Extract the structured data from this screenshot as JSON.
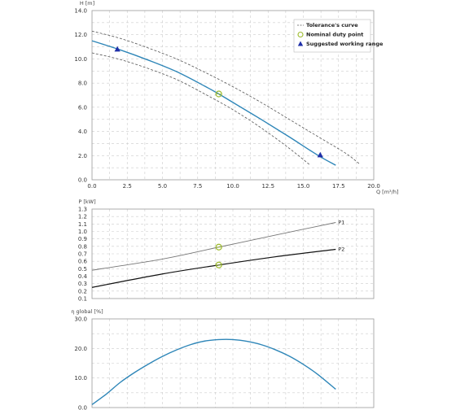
{
  "colors": {
    "curve": "#2e86b8",
    "tolerance": "#555555",
    "duty_marker": "#9dbb2c",
    "range_marker": "#1f2fa8",
    "p1": "#777777",
    "p2": "#111111",
    "grid": "#cccccc",
    "frame": "#999999"
  },
  "chart_data": [
    {
      "id": "head",
      "type": "line",
      "xlabel": "Q [m³/h]",
      "ylabel": "H [m]",
      "xlim": [
        0,
        20
      ],
      "ylim": [
        0,
        14
      ],
      "xticks": [
        "0.0",
        "2.5",
        "5.0",
        "7.5",
        "10.0",
        "12.5",
        "15.0",
        "17.5",
        "20.0"
      ],
      "yticks": [
        "0.0",
        "2.0",
        "4.0",
        "6.0",
        "8.0",
        "10.0",
        "12.0",
        "14.0"
      ],
      "grid": true,
      "legend_position": "top-right",
      "legend": [
        {
          "label": "Tolerance's curve",
          "marker": "dashed-line"
        },
        {
          "label": "Nominal duty point",
          "marker": "circle"
        },
        {
          "label": "Suggested working range",
          "marker": "triangle"
        }
      ],
      "series": [
        {
          "x": [
            0,
            2,
            4,
            6,
            8,
            9,
            10,
            12,
            14,
            16,
            17.3
          ],
          "y": [
            11.5,
            10.75,
            9.9,
            8.95,
            7.75,
            7.1,
            6.4,
            5.0,
            3.55,
            2.05,
            1.2
          ]
        },
        {
          "x": [
            0,
            2,
            4,
            6,
            8,
            10,
            12,
            14,
            16,
            18,
            19
          ],
          "y": [
            12.3,
            11.7,
            10.9,
            10.0,
            8.9,
            7.7,
            6.4,
            5.0,
            3.6,
            2.2,
            1.3
          ]
        },
        {
          "x": [
            0,
            2,
            4,
            6,
            8,
            10,
            12,
            14,
            15.5
          ],
          "y": [
            10.5,
            9.95,
            9.2,
            8.3,
            7.1,
            5.8,
            4.3,
            2.6,
            1.2
          ]
        }
      ],
      "duty_point": {
        "x": 9.0,
        "y": 7.1
      },
      "working_range": [
        {
          "x": 1.8,
          "y": 10.8
        },
        {
          "x": 16.2,
          "y": 2.05
        }
      ]
    },
    {
      "id": "power",
      "type": "line",
      "ylabel": "P [kW]",
      "xlim": [
        0,
        20
      ],
      "ylim": [
        0.1,
        1.3
      ],
      "yticks": [
        "1.3",
        "1.2",
        "1.1",
        "1.0",
        "0.9",
        "0.8",
        "0.7",
        "0.6",
        "0.5",
        "0.4",
        "0.3",
        "0.2",
        "0.1"
      ],
      "grid": true,
      "series": [
        {
          "name": "P1",
          "x": [
            0,
            5,
            9,
            13,
            17.3
          ],
          "y": [
            0.48,
            0.63,
            0.79,
            0.95,
            1.12
          ]
        },
        {
          "name": "P2",
          "x": [
            0,
            5,
            9,
            13,
            17.3
          ],
          "y": [
            0.25,
            0.43,
            0.55,
            0.66,
            0.76
          ]
        }
      ],
      "duty_points": [
        {
          "x": 9.0,
          "y": 0.79
        },
        {
          "x": 9.0,
          "y": 0.55
        }
      ]
    },
    {
      "id": "efficiency",
      "type": "line",
      "ylabel": "η global [%]",
      "xlim": [
        0,
        20
      ],
      "ylim": [
        0,
        30
      ],
      "yticks": [
        "0.0",
        "10.0",
        "20.0",
        "30.0"
      ],
      "grid": true,
      "series": [
        {
          "x": [
            0,
            1,
            2,
            3,
            4,
            5,
            6,
            7,
            8,
            9,
            10,
            11,
            12,
            13,
            14,
            15,
            16,
            17.3
          ],
          "y": [
            1.0,
            4.5,
            8.5,
            11.8,
            14.7,
            17.3,
            19.5,
            21.3,
            22.5,
            23.0,
            23.0,
            22.4,
            21.3,
            19.6,
            17.4,
            14.6,
            11.3,
            6.2
          ]
        }
      ]
    }
  ]
}
